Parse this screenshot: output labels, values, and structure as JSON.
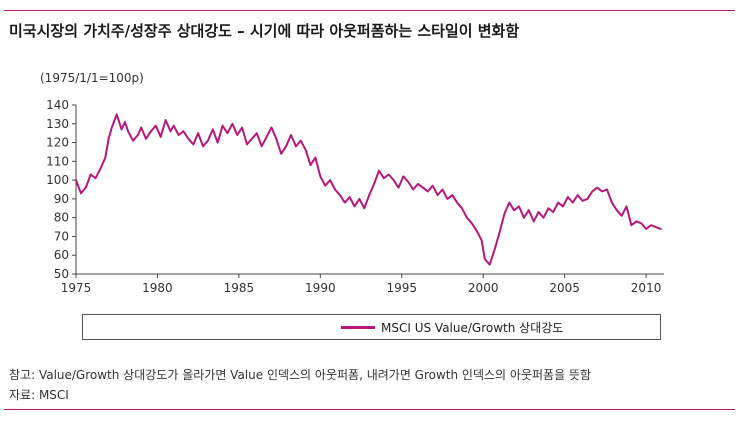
{
  "chart_data": {
    "type": "line",
    "title": "미국시장의 가치주/성장주 상대강도 – 시기에 따라 아웃퍼폼하는 스타일이 변화함",
    "unit_label": "(1975/1/1=100p)",
    "xlabel": "",
    "ylabel": "",
    "xlim": [
      1975,
      2011.1
    ],
    "ylim": [
      50,
      140
    ],
    "x_ticks": [
      1975,
      1980,
      1985,
      1990,
      1995,
      2000,
      2005,
      2010
    ],
    "y_ticks": [
      50,
      60,
      70,
      80,
      90,
      100,
      110,
      120,
      130,
      140
    ],
    "grid": false,
    "legend_position": "bottom",
    "series": [
      {
        "name": "MSCI US Value/Growth 상대강도",
        "color": "#b5177a",
        "x": [
          1975.0,
          1975.3,
          1975.6,
          1975.9,
          1976.2,
          1976.5,
          1976.8,
          1977.0,
          1977.2,
          1977.5,
          1977.8,
          1978.0,
          1978.2,
          1978.5,
          1978.8,
          1979.0,
          1979.3,
          1979.6,
          1979.9,
          1980.2,
          1980.5,
          1980.8,
          1981.0,
          1981.3,
          1981.6,
          1981.9,
          1982.2,
          1982.5,
          1982.8,
          1983.1,
          1983.4,
          1983.7,
          1984.0,
          1984.3,
          1984.6,
          1984.9,
          1985.2,
          1985.5,
          1985.8,
          1986.1,
          1986.4,
          1986.7,
          1987.0,
          1987.3,
          1987.6,
          1987.9,
          1988.2,
          1988.5,
          1988.8,
          1989.1,
          1989.4,
          1989.7,
          1990.0,
          1990.3,
          1990.6,
          1990.9,
          1991.2,
          1991.5,
          1991.8,
          1992.1,
          1992.4,
          1992.7,
          1993.0,
          1993.3,
          1993.6,
          1993.9,
          1994.2,
          1994.5,
          1994.8,
          1995.1,
          1995.4,
          1995.7,
          1996.0,
          1996.3,
          1996.6,
          1996.9,
          1997.2,
          1997.5,
          1997.8,
          1998.1,
          1998.4,
          1998.7,
          1999.0,
          1999.3,
          1999.6,
          1999.9,
          2000.1,
          2000.4,
          2000.7,
          2001.0,
          2001.3,
          2001.6,
          2001.9,
          2002.2,
          2002.5,
          2002.8,
          2003.1,
          2003.4,
          2003.7,
          2004.0,
          2004.3,
          2004.6,
          2004.9,
          2005.2,
          2005.5,
          2005.8,
          2006.1,
          2006.4,
          2006.7,
          2007.0,
          2007.3,
          2007.6,
          2007.9,
          2008.2,
          2008.5,
          2008.8,
          2009.1,
          2009.4,
          2009.7,
          2010.0,
          2010.3,
          2010.6,
          2010.9
        ],
        "values": [
          100,
          93,
          96,
          103,
          101,
          106,
          112,
          122,
          128,
          135,
          127,
          131,
          126,
          121,
          124,
          128,
          122,
          126,
          129,
          123,
          132,
          126,
          129,
          124,
          126,
          122,
          119,
          125,
          118,
          121,
          127,
          120,
          129,
          125,
          130,
          124,
          128,
          119,
          122,
          125,
          118,
          123,
          128,
          122,
          114,
          118,
          124,
          118,
          121,
          116,
          108,
          112,
          102,
          97,
          100,
          95,
          92,
          88,
          91,
          86,
          90,
          85,
          92,
          98,
          105,
          101,
          103,
          100,
          96,
          102,
          99,
          95,
          98,
          96,
          94,
          97,
          92,
          95,
          90,
          92,
          88,
          85,
          80,
          77,
          73,
          68,
          58,
          55,
          63,
          72,
          82,
          88,
          84,
          86,
          80,
          84,
          78,
          83,
          80,
          85,
          83,
          88,
          86,
          91,
          88,
          92,
          89,
          90,
          94,
          96,
          94,
          95,
          88,
          84,
          81,
          86,
          76,
          78,
          77,
          74,
          76,
          75,
          74
        ]
      }
    ]
  },
  "notes": {
    "line1": "참고: Value/Growth 상대강도가 올라가면 Value 인덱스의 아웃퍼폼, 내려가면 Growth 인덱스의 아웃퍼폼을 뜻함",
    "line2": "자료: MSCI"
  }
}
